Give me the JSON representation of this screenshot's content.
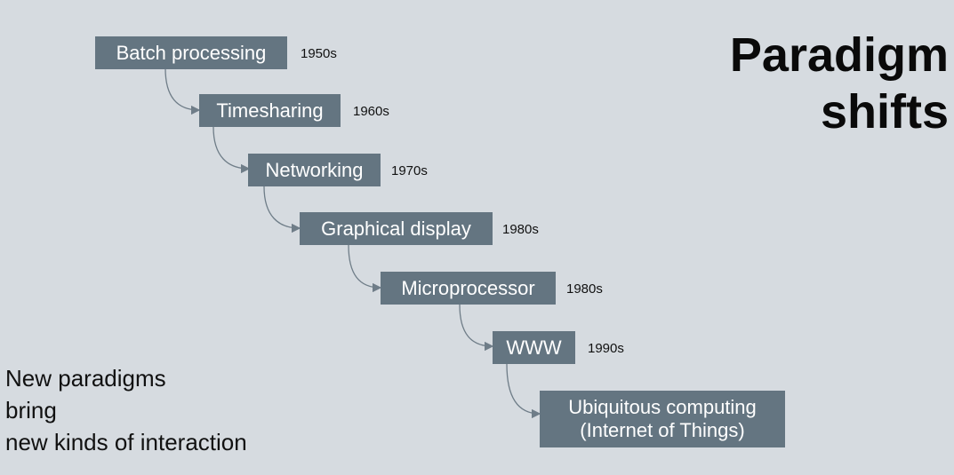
{
  "title": {
    "line1": "Paradigm",
    "line2": "shifts"
  },
  "paradigms": [
    {
      "label": "Batch processing",
      "year": "1950s"
    },
    {
      "label": "Timesharing",
      "year": "1960s"
    },
    {
      "label": "Networking",
      "year": "1970s"
    },
    {
      "label": "Graphical display",
      "year": "1980s"
    },
    {
      "label": "Microprocessor",
      "year": "1980s"
    },
    {
      "label": "WWW",
      "year": "1990s"
    },
    {
      "label_line1": "Ubiquitous computing",
      "label_line2": "(Internet of Things)"
    }
  ],
  "note": {
    "line1": "New paradigms",
    "line2": "bring",
    "line3": "new kinds of interaction"
  },
  "colors": {
    "box_fill": "#647581",
    "background": "#d6dbe0",
    "connector": "#6f7d88"
  }
}
